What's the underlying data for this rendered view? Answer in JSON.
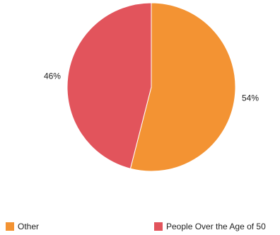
{
  "chart_data": {
    "type": "pie",
    "slices": [
      {
        "label": "Other",
        "value": 54,
        "display": "54%",
        "color": "#f39333"
      },
      {
        "label": "People Over the Age of 50",
        "value": 46,
        "display": "46%",
        "color": "#e2545c"
      }
    ],
    "legend_position": "bottom",
    "title": ""
  }
}
